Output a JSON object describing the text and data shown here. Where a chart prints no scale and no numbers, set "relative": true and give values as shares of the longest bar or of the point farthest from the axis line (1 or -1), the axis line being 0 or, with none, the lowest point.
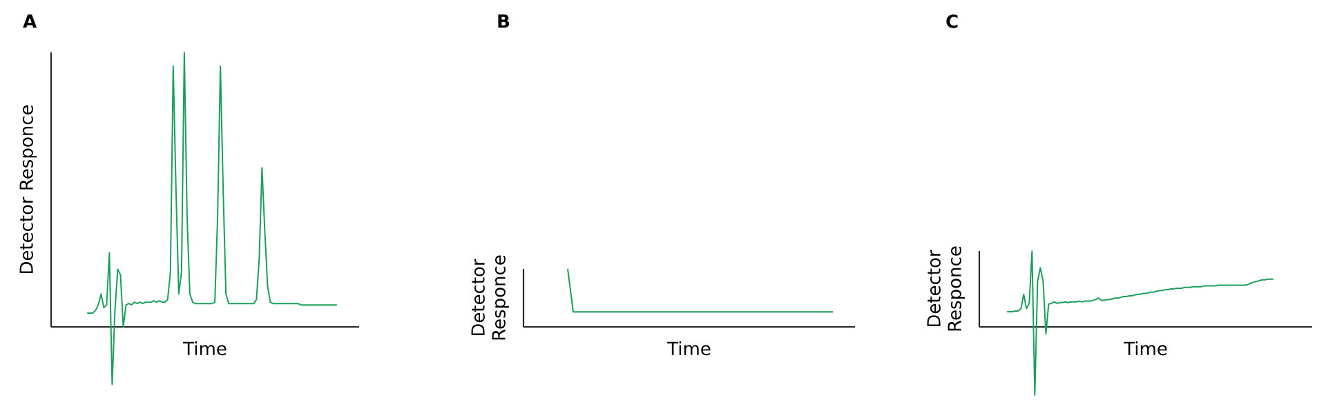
{
  "chart_data": [
    {
      "type": "line",
      "title": "A",
      "xlabel": "Time",
      "ylabel": "Detector Responce",
      "color": "#1a9f5b",
      "relative": true,
      "categories": [
        null,
        null,
        null,
        null,
        null,
        null,
        null,
        null,
        null,
        null,
        null,
        null,
        null,
        null,
        null,
        null,
        null,
        null,
        null,
        null,
        null,
        null,
        null,
        null,
        null,
        null,
        null,
        null,
        null,
        null,
        null,
        null,
        null,
        null,
        null,
        null,
        null,
        null,
        null,
        null,
        null,
        null,
        null,
        null,
        null,
        null,
        null,
        null,
        null,
        null,
        null,
        null,
        null,
        null,
        null,
        null,
        null,
        null,
        null,
        null,
        null,
        null,
        null,
        null,
        null,
        null,
        null,
        null,
        null,
        null,
        null,
        null,
        null,
        null,
        null,
        null,
        null,
        null,
        null,
        null,
        null,
        null,
        null,
        null,
        null,
        null,
        null,
        null,
        null,
        null,
        null,
        null,
        null,
        null,
        null,
        null,
        null,
        null,
        null,
        null,
        null,
        null,
        null,
        null,
        null,
        null,
        null,
        null,
        null,
        null,
        null,
        null
      ],
      "values": [
        null,
        null,
        null,
        null,
        null,
        null,
        null,
        null,
        null,
        null,
        null,
        null,
        null,
        0.05,
        0.05,
        0.05,
        0.06,
        0.08,
        0.12,
        0.07,
        0.08,
        0.27,
        -0.21,
        0.06,
        0.21,
        0.19,
        0.0,
        0.08,
        0.085,
        0.08,
        0.09,
        0.085,
        0.09,
        0.085,
        0.09,
        0.09,
        0.09,
        0.095,
        0.09,
        0.095,
        0.09,
        0.09,
        0.1,
        0.2,
        0.95,
        0.5,
        0.12,
        0.2,
        1.0,
        0.4,
        0.12,
        0.09,
        0.085,
        0.085,
        0.085,
        0.085,
        0.085,
        0.085,
        0.085,
        0.09,
        0.4,
        0.95,
        0.5,
        0.12,
        0.085,
        0.085,
        0.085,
        0.085,
        0.085,
        0.085,
        0.085,
        0.085,
        0.085,
        0.085,
        0.1,
        0.25,
        0.58,
        0.35,
        0.15,
        0.09,
        0.085,
        0.085,
        0.085,
        0.085,
        0.085,
        0.085,
        0.085,
        0.085,
        0.085,
        0.085,
        0.08,
        0.08,
        0.08,
        0.08,
        0.08,
        0.08,
        0.08,
        0.08,
        0.08,
        0.08,
        0.08,
        0.08,
        0.08,
        0.08,
        null,
        null,
        null,
        null,
        null,
        null,
        null,
        null
      ]
    },
    {
      "type": "line",
      "title": "B",
      "xlabel": "Time",
      "ylabel": "Detector Responce",
      "color": "#1a9f5b",
      "relative": true,
      "categories": [
        null,
        null,
        null,
        null,
        null,
        null,
        null,
        null,
        null,
        null,
        null,
        null,
        null,
        null,
        null,
        null,
        null,
        null,
        null,
        null,
        null,
        null,
        null,
        null,
        null,
        null,
        null,
        null,
        null,
        null,
        null,
        null,
        null,
        null,
        null,
        null,
        null,
        null,
        null,
        null,
        null,
        null,
        null,
        null,
        null,
        null,
        null,
        null,
        null,
        null,
        null,
        null,
        null,
        null,
        null,
        null,
        null,
        null,
        null,
        null,
        null
      ],
      "values": [
        null,
        null,
        null,
        null,
        null,
        null,
        null,
        null,
        1.0,
        0.26,
        0.26,
        0.26,
        0.26,
        0.26,
        0.26,
        0.26,
        0.26,
        0.26,
        0.26,
        0.26,
        0.26,
        0.26,
        0.26,
        0.26,
        0.26,
        0.26,
        0.26,
        0.26,
        0.26,
        0.26,
        0.26,
        0.26,
        0.26,
        0.26,
        0.26,
        0.26,
        0.26,
        0.26,
        0.26,
        0.26,
        0.26,
        0.26,
        0.26,
        0.26,
        0.26,
        0.26,
        0.26,
        0.26,
        0.26,
        0.26,
        0.26,
        0.26,
        0.26,
        0.26,
        0.26,
        0.26,
        0.26,
        null,
        null,
        null,
        null
      ]
    },
    {
      "type": "line",
      "title": "C",
      "xlabel": "Time",
      "ylabel": "Detector Responce",
      "color": "#1a9f5b",
      "relative": true,
      "categories": [
        null,
        null,
        null,
        null,
        null,
        null,
        null,
        null,
        null,
        null,
        null,
        null,
        null,
        null,
        null,
        null,
        null,
        null,
        null,
        null,
        null,
        null,
        null,
        null,
        null,
        null,
        null,
        null,
        null,
        null,
        null,
        null,
        null,
        null,
        null,
        null,
        null,
        null,
        null,
        null,
        null,
        null,
        null,
        null,
        null,
        null,
        null,
        null,
        null,
        null,
        null,
        null,
        null,
        null,
        null,
        null,
        null,
        null,
        null,
        null,
        null,
        null,
        null,
        null,
        null,
        null,
        null,
        null,
        null,
        null,
        null,
        null,
        null,
        null,
        null,
        null,
        null,
        null,
        null,
        null,
        null,
        null,
        null,
        null,
        null,
        null,
        null,
        null,
        null,
        null,
        null,
        null,
        null,
        null,
        null,
        null,
        null,
        null,
        null,
        null,
        null,
        null,
        null,
        null,
        null,
        null,
        null,
        null,
        null,
        null,
        null,
        null,
        null,
        null,
        null,
        null,
        null,
        null,
        null,
        null,
        null
      ],
      "values": [
        null,
        null,
        null,
        null,
        null,
        null,
        null,
        null,
        null,
        null,
        0.2,
        0.2,
        0.2,
        0.21,
        0.21,
        0.24,
        0.43,
        0.24,
        0.31,
        1.0,
        -0.9,
        0.6,
        0.78,
        0.6,
        -0.09,
        0.3,
        0.31,
        0.33,
        0.31,
        0.32,
        0.32,
        0.33,
        0.32,
        0.33,
        0.33,
        0.33,
        0.34,
        0.33,
        0.34,
        0.34,
        0.34,
        0.35,
        0.36,
        0.38,
        0.35,
        0.35,
        0.36,
        0.36,
        0.37,
        0.38,
        0.38,
        0.39,
        0.4,
        0.4,
        0.41,
        0.41,
        0.42,
        0.43,
        0.43,
        0.44,
        0.44,
        0.45,
        0.46,
        0.46,
        0.47,
        0.48,
        0.48,
        0.49,
        0.49,
        0.5,
        0.5,
        0.51,
        0.51,
        0.51,
        0.52,
        0.52,
        0.52,
        0.53,
        0.53,
        0.53,
        0.53,
        0.54,
        0.54,
        0.54,
        0.54,
        0.54,
        0.55,
        0.55,
        0.55,
        0.55,
        0.55,
        0.55,
        0.55,
        0.55,
        0.55,
        0.55,
        0.55,
        0.56,
        0.58,
        0.59,
        0.6,
        0.61,
        0.62,
        0.62,
        0.63,
        0.63,
        0.63,
        null,
        null,
        null,
        null,
        null,
        null,
        null,
        null,
        null,
        null,
        null,
        null,
        null,
        null
      ]
    }
  ]
}
